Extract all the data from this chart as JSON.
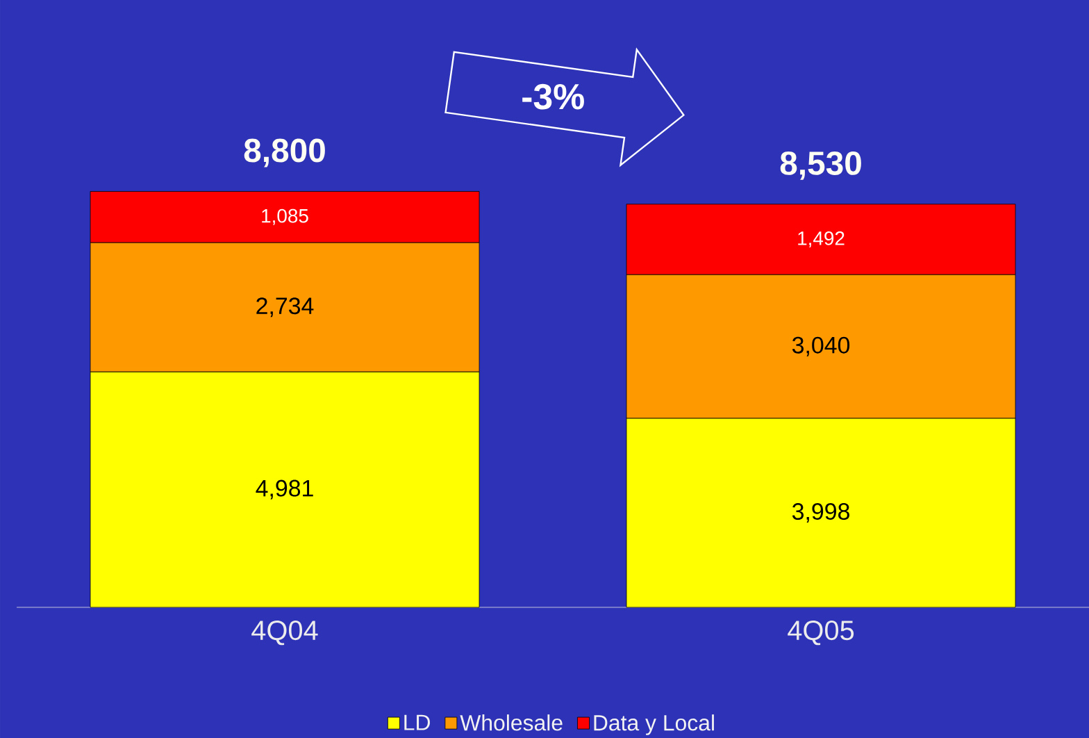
{
  "chart_data": {
    "type": "bar",
    "stacked": true,
    "categories": [
      "4Q04",
      "4Q05"
    ],
    "series": [
      {
        "name": "LD",
        "color": "#ffff00",
        "values": [
          4981,
          3998
        ],
        "value_labels": [
          "4,981",
          "3,998"
        ]
      },
      {
        "name": "Wholesale",
        "color": "#ff9900",
        "values": [
          2734,
          3040
        ],
        "value_labels": [
          "2,734",
          "3,040"
        ]
      },
      {
        "name": "Data y Local",
        "color": "#ff0000",
        "values": [
          1085,
          1492
        ],
        "value_labels": [
          "1,085",
          "1,492"
        ]
      }
    ],
    "totals": [
      "8,800",
      "8,530"
    ],
    "annotations": [
      "-3%"
    ],
    "legend": "bottom"
  }
}
